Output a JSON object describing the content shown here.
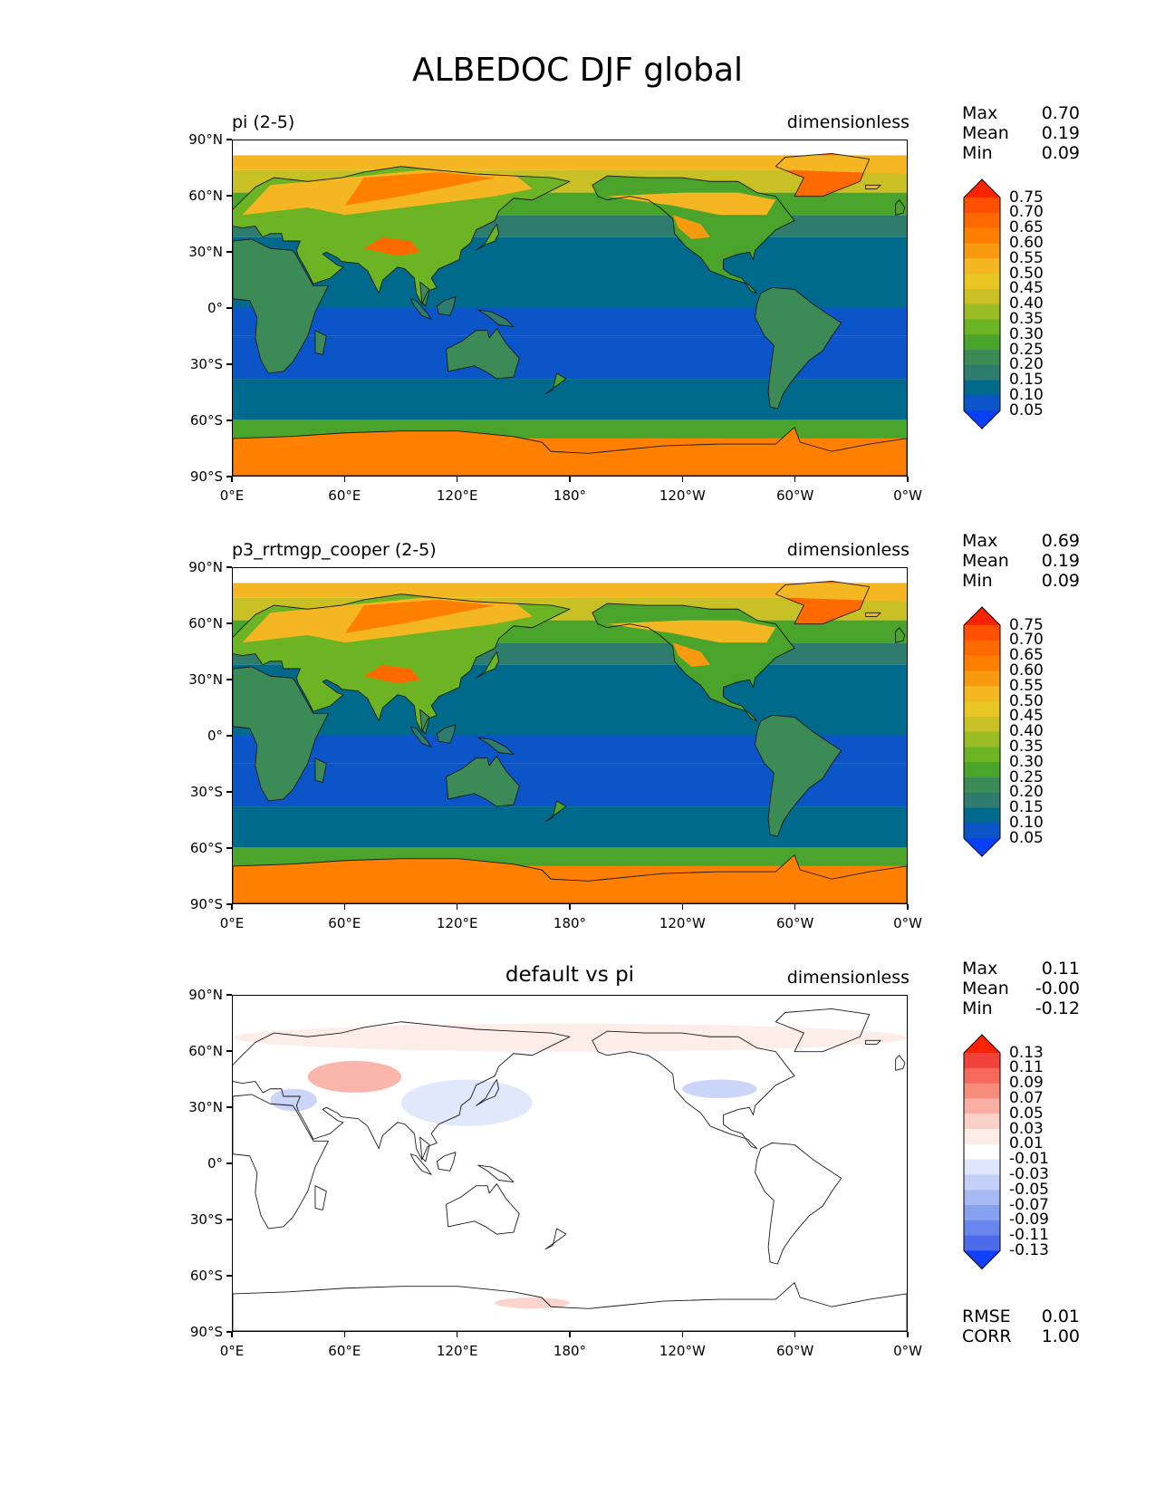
{
  "title": "ALBEDOC DJF global",
  "axes": {
    "lat_ticks": [
      "90°N",
      "60°N",
      "30°N",
      "0°",
      "30°S",
      "60°S",
      "90°S"
    ],
    "lon_ticks": [
      "0°E",
      "60°E",
      "120°E",
      "180°",
      "120°W",
      "60°W",
      "0°W"
    ]
  },
  "panels": [
    {
      "left_title": "pi (2-5)",
      "center_title": "",
      "units": "dimensionless",
      "stats": [
        {
          "label": "Max",
          "value": "0.70"
        },
        {
          "label": "Mean",
          "value": "0.19"
        },
        {
          "label": "Min",
          "value": "0.09"
        }
      ],
      "colorbar": {
        "levels": [
          "0.75",
          "0.70",
          "0.65",
          "0.60",
          "0.55",
          "0.50",
          "0.45",
          "0.40",
          "0.35",
          "0.30",
          "0.25",
          "0.20",
          "0.15",
          "0.10",
          "0.05"
        ],
        "colors": [
          "#ff2200",
          "#ff4f00",
          "#ff6a00",
          "#ff7f00",
          "#f79a10",
          "#f5b623",
          "#eac625",
          "#c8c025",
          "#9cbc25",
          "#6cb424",
          "#4aa32a",
          "#3c8a55",
          "#2e7c6d",
          "#006a8c",
          "#0b55c9",
          "#0a3ff8"
        ]
      },
      "footer_stats": []
    },
    {
      "left_title": "p3_rrtmgp_cooper (2-5)",
      "center_title": "",
      "units": "dimensionless",
      "stats": [
        {
          "label": "Max",
          "value": "0.69"
        },
        {
          "label": "Mean",
          "value": "0.19"
        },
        {
          "label": "Min",
          "value": "0.09"
        }
      ],
      "colorbar": {
        "levels": [
          "0.75",
          "0.70",
          "0.65",
          "0.60",
          "0.55",
          "0.50",
          "0.45",
          "0.40",
          "0.35",
          "0.30",
          "0.25",
          "0.20",
          "0.15",
          "0.10",
          "0.05"
        ],
        "colors": [
          "#ff2200",
          "#ff4f00",
          "#ff6a00",
          "#ff7f00",
          "#f79a10",
          "#f5b623",
          "#eac625",
          "#c8c025",
          "#9cbc25",
          "#6cb424",
          "#4aa32a",
          "#3c8a55",
          "#2e7c6d",
          "#006a8c",
          "#0b55c9",
          "#0a3ff8"
        ]
      },
      "footer_stats": []
    },
    {
      "left_title": "",
      "center_title": "default vs pi",
      "units": "dimensionless",
      "stats": [
        {
          "label": "Max",
          "value": "0.11"
        },
        {
          "label": "Mean",
          "value": "-0.00"
        },
        {
          "label": "Min",
          "value": "-0.12"
        }
      ],
      "colorbar": {
        "levels": [
          "0.13",
          "0.11",
          "0.09",
          "0.07",
          "0.05",
          "0.03",
          "0.01",
          "-0.01",
          "-0.03",
          "-0.05",
          "-0.07",
          "-0.09",
          "-0.11",
          "-0.13"
        ],
        "colors": [
          "#ff2200",
          "#f0423a",
          "#f56a5a",
          "#f78c7d",
          "#f9aea2",
          "#fbd0c8",
          "#fdebe7",
          "#ffffff",
          "#dfe6fb",
          "#c4d0f7",
          "#a7baf3",
          "#87a1ef",
          "#6886ec",
          "#4b6bea",
          "#1040f8"
        ]
      },
      "footer_stats": [
        {
          "label": "RMSE",
          "value": "0.01"
        },
        {
          "label": "CORR",
          "value": "1.00"
        }
      ]
    }
  ],
  "chart_data": [
    {
      "type": "heatmap",
      "title": "pi (2-5)",
      "units": "dimensionless",
      "projection": "plate carree, global, central longitude 180",
      "xlim_lon": [
        0,
        360
      ],
      "ylim_lat": [
        -90,
        90
      ],
      "stats": {
        "max": 0.7,
        "mean": 0.19,
        "min": 0.09
      },
      "contour_levels": [
        0.05,
        0.1,
        0.15,
        0.2,
        0.25,
        0.3,
        0.35,
        0.4,
        0.45,
        0.5,
        0.55,
        0.6,
        0.65,
        0.7,
        0.75
      ],
      "colorbar_extend": "both",
      "zonal_bands": [
        {
          "lat": [
            -90,
            -70
          ],
          "value": 0.62,
          "note": "Antarctica"
        },
        {
          "lat": [
            -70,
            -60
          ],
          "value": 0.27
        },
        {
          "lat": [
            -60,
            -38
          ],
          "value": 0.12
        },
        {
          "lat": [
            -38,
            -15
          ],
          "value": 0.08
        },
        {
          "lat": [
            -15,
            0
          ],
          "value": 0.08
        },
        {
          "lat": [
            0,
            18
          ],
          "value": 0.12
        },
        {
          "lat": [
            18,
            38
          ],
          "value": 0.12
        },
        {
          "lat": [
            38,
            50
          ],
          "value": 0.17
        },
        {
          "lat": [
            50,
            62
          ],
          "value": 0.27
        },
        {
          "lat": [
            62,
            74
          ],
          "value": 0.42
        },
        {
          "lat": [
            74,
            82
          ],
          "value": 0.52
        }
      ]
    },
    {
      "type": "heatmap",
      "title": "p3_rrtmgp_cooper (2-5)",
      "units": "dimensionless",
      "projection": "plate carree, global, central longitude 180",
      "xlim_lon": [
        0,
        360
      ],
      "ylim_lat": [
        -90,
        90
      ],
      "stats": {
        "max": 0.69,
        "mean": 0.19,
        "min": 0.09
      },
      "contour_levels": [
        0.05,
        0.1,
        0.15,
        0.2,
        0.25,
        0.3,
        0.35,
        0.4,
        0.45,
        0.5,
        0.55,
        0.6,
        0.65,
        0.7,
        0.75
      ],
      "colorbar_extend": "both",
      "zonal_bands": [
        {
          "lat": [
            -90,
            -70
          ],
          "value": 0.62,
          "note": "Antarctica"
        },
        {
          "lat": [
            -70,
            -60
          ],
          "value": 0.27
        },
        {
          "lat": [
            -60,
            -38
          ],
          "value": 0.12
        },
        {
          "lat": [
            -38,
            -15
          ],
          "value": 0.08
        },
        {
          "lat": [
            -15,
            0
          ],
          "value": 0.08
        },
        {
          "lat": [
            0,
            18
          ],
          "value": 0.12
        },
        {
          "lat": [
            18,
            38
          ],
          "value": 0.12
        },
        {
          "lat": [
            38,
            50
          ],
          "value": 0.17
        },
        {
          "lat": [
            50,
            62
          ],
          "value": 0.27
        },
        {
          "lat": [
            62,
            74
          ],
          "value": 0.42
        },
        {
          "lat": [
            74,
            82
          ],
          "value": 0.52
        }
      ]
    },
    {
      "type": "heatmap",
      "title": "default vs pi",
      "units": "dimensionless",
      "projection": "plate carree, global, central longitude 180",
      "xlim_lon": [
        0,
        360
      ],
      "ylim_lat": [
        -90,
        90
      ],
      "stats": {
        "max": 0.11,
        "mean": -0.0,
        "min": -0.12,
        "rmse": 0.01,
        "corr": 1.0
      },
      "contour_levels": [
        -0.13,
        -0.11,
        -0.09,
        -0.07,
        -0.05,
        -0.03,
        -0.01,
        0.01,
        0.03,
        0.05,
        0.07,
        0.09,
        0.11,
        0.13
      ],
      "colorbar_extend": "both",
      "anomalies": [
        {
          "region": "Central Asia",
          "lon": [
            40,
            90
          ],
          "lat": [
            38,
            55
          ],
          "value": 0.06
        },
        {
          "region": "Caspian / Middle East",
          "lon": [
            20,
            45
          ],
          "lat": [
            28,
            40
          ],
          "value": -0.05
        },
        {
          "region": "East Asia / NW Pacific",
          "lon": [
            90,
            160
          ],
          "lat": [
            20,
            45
          ],
          "value": -0.02
        },
        {
          "region": "North America",
          "lon": [
            240,
            280
          ],
          "lat": [
            35,
            45
          ],
          "value": -0.04
        },
        {
          "region": "High northern latitudes",
          "lon": [
            0,
            360
          ],
          "lat": [
            60,
            75
          ],
          "value": 0.02
        },
        {
          "region": "Southern Ocean near 150°E",
          "lon": [
            140,
            180
          ],
          "lat": [
            -78,
            -72
          ],
          "value": 0.04
        }
      ]
    }
  ]
}
